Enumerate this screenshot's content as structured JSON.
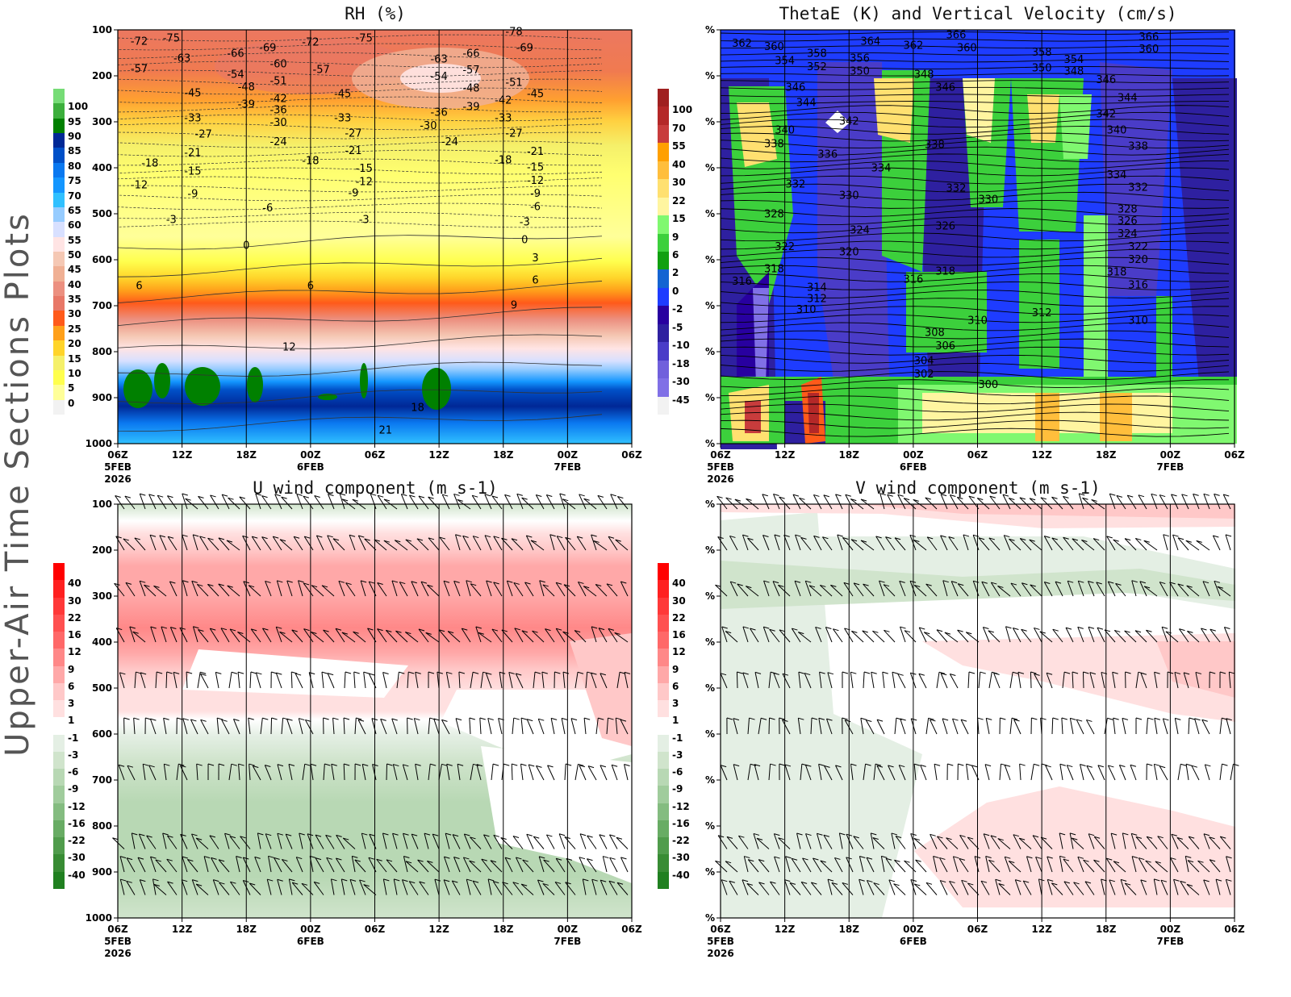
{
  "side_label": "Upper-Air Time Sections Plots",
  "time_axis": {
    "ticks": [
      "06Z",
      "12Z",
      "18Z",
      "00Z",
      "06Z",
      "12Z",
      "18Z",
      "00Z",
      "06Z"
    ],
    "date_labels": [
      {
        "index": 0,
        "lines": [
          "5FEB",
          "2026"
        ]
      },
      {
        "index": 3,
        "lines": [
          "6FEB"
        ]
      },
      {
        "index": 7,
        "lines": [
          "7FEB"
        ]
      }
    ]
  },
  "chart_data": [
    {
      "type": "heatmap",
      "title": "RH (%)",
      "x_range": [
        "5FEB 06Z",
        "7FEB 06Z"
      ],
      "y_ticks": [
        "100",
        "200",
        "300",
        "400",
        "500",
        "600",
        "700",
        "800",
        "900",
        "1000"
      ],
      "y_range": [
        100,
        1000
      ],
      "y_inverted": true,
      "colorbar": {
        "labels": [
          "100",
          "95",
          "90",
          "85",
          "80",
          "75",
          "70",
          "65",
          "60",
          "55",
          "50",
          "45",
          "40",
          "35",
          "30",
          "25",
          "20",
          "15",
          "10",
          "5",
          "0"
        ],
        "colors": [
          "#76dc76",
          "#3caf3c",
          "#008000",
          "#002896",
          "#0050c8",
          "#0a78f0",
          "#1496ff",
          "#30c0ff",
          "#96ccff",
          "#d8e0ff",
          "#ffe4e4",
          "#f5c8b4",
          "#f0b094",
          "#ec9080",
          "#e87868",
          "#ff5a1a",
          "#ffa01a",
          "#ffd42a",
          "#f5f06a",
          "#ffff4d",
          "#ffff99",
          "#f2f2f2"
        ]
      },
      "contour_labels": [
        {
          "v": "-72",
          "t": "5FEB 08Z",
          "p": 126
        },
        {
          "v": "-75",
          "t": "5FEB 11Z",
          "p": 119
        },
        {
          "v": "-63",
          "t": "5FEB 12Z",
          "p": 163
        },
        {
          "v": "-57",
          "t": "5FEB 08Z",
          "p": 186
        },
        {
          "v": "-66",
          "t": "5FEB 17Z",
          "p": 153
        },
        {
          "v": "-69",
          "t": "5FEB 20Z",
          "p": 140
        },
        {
          "v": "-60",
          "t": "5FEB 21Z",
          "p": 175
        },
        {
          "v": "-72",
          "t": "6FEB 00Z",
          "p": 128
        },
        {
          "v": "-75",
          "t": "6FEB 05Z",
          "p": 119
        },
        {
          "v": "-57",
          "t": "6FEB 01Z",
          "p": 188
        },
        {
          "v": "-54",
          "t": "5FEB 17Z",
          "p": 198
        },
        {
          "v": "-51",
          "t": "5FEB 21Z",
          "p": 212
        },
        {
          "v": "-48",
          "t": "5FEB 18Z",
          "p": 225
        },
        {
          "v": "-45",
          "t": "5FEB 13Z",
          "p": 239
        },
        {
          "v": "-45",
          "t": "6FEB 03Z",
          "p": 240
        },
        {
          "v": "-42",
          "t": "5FEB 21Z",
          "p": 251
        },
        {
          "v": "-39",
          "t": "5FEB 18Z",
          "p": 263
        },
        {
          "v": "-36",
          "t": "5FEB 21Z",
          "p": 275
        },
        {
          "v": "-33",
          "t": "5FEB 13Z",
          "p": 293
        },
        {
          "v": "-30",
          "t": "5FEB 21Z",
          "p": 303
        },
        {
          "v": "-33",
          "t": "6FEB 03Z",
          "p": 293
        },
        {
          "v": "-27",
          "t": "5FEB 14Z",
          "p": 328
        },
        {
          "v": "-24",
          "t": "5FEB 21Z",
          "p": 345
        },
        {
          "v": "-27",
          "t": "6FEB 04Z",
          "p": 326
        },
        {
          "v": "-21",
          "t": "5FEB 13Z",
          "p": 368
        },
        {
          "v": "-21",
          "t": "6FEB 04Z",
          "p": 364
        },
        {
          "v": "-18",
          "t": "5FEB 09Z",
          "p": 391
        },
        {
          "v": "-15",
          "t": "5FEB 13Z",
          "p": 409
        },
        {
          "v": "-12",
          "t": "5FEB 08Z",
          "p": 439
        },
        {
          "v": "-9",
          "t": "5FEB 13Z",
          "p": 458
        },
        {
          "v": "-18",
          "t": "6FEB 00Z",
          "p": 386
        },
        {
          "v": "-15",
          "t": "6FEB 05Z",
          "p": 403
        },
        {
          "v": "-12",
          "t": "6FEB 05Z",
          "p": 432
        },
        {
          "v": "-9",
          "t": "6FEB 04Z",
          "p": 456
        },
        {
          "v": "-6",
          "t": "5FEB 20Z",
          "p": 489
        },
        {
          "v": "-3",
          "t": "5FEB 11Z",
          "p": 514
        },
        {
          "v": "-3",
          "t": "6FEB 05Z",
          "p": 514
        },
        {
          "v": "0",
          "t": "5FEB 18Z",
          "p": 570
        },
        {
          "v": "6",
          "t": "5FEB 08Z",
          "p": 658
        },
        {
          "v": "6",
          "t": "6FEB 00Z",
          "p": 658
        },
        {
          "v": "12",
          "t": "5FEB 22Z",
          "p": 791
        },
        {
          "v": "18",
          "t": "6FEB 10Z",
          "p": 923
        },
        {
          "v": "21",
          "t": "6FEB 07Z",
          "p": 972
        },
        {
          "v": "-63",
          "t": "6FEB 12Z",
          "p": 165
        },
        {
          "v": "-66",
          "t": "6FEB 15Z",
          "p": 153
        },
        {
          "v": "-78",
          "t": "6FEB 19Z",
          "p": 105
        },
        {
          "v": "-69",
          "t": "6FEB 20Z",
          "p": 140
        },
        {
          "v": "-54",
          "t": "6FEB 12Z",
          "p": 203
        },
        {
          "v": "-57",
          "t": "6FEB 15Z",
          "p": 189
        },
        {
          "v": "-48",
          "t": "6FEB 15Z",
          "p": 228
        },
        {
          "v": "-51",
          "t": "6FEB 19Z",
          "p": 216
        },
        {
          "v": "-45",
          "t": "6FEB 21Z",
          "p": 240
        },
        {
          "v": "-36",
          "t": "6FEB 12Z",
          "p": 281
        },
        {
          "v": "-39",
          "t": "6FEB 15Z",
          "p": 268
        },
        {
          "v": "-42",
          "t": "6FEB 18Z",
          "p": 254
        },
        {
          "v": "-30",
          "t": "6FEB 11Z",
          "p": 310
        },
        {
          "v": "-33",
          "t": "6FEB 18Z",
          "p": 293
        },
        {
          "v": "-24",
          "t": "6FEB 13Z",
          "p": 345
        },
        {
          "v": "-27",
          "t": "6FEB 19Z",
          "p": 326
        },
        {
          "v": "-21",
          "t": "6FEB 21Z",
          "p": 366
        },
        {
          "v": "-18",
          "t": "6FEB 18Z",
          "p": 384
        },
        {
          "v": "-15",
          "t": "6FEB 21Z",
          "p": 400
        },
        {
          "v": "-12",
          "t": "6FEB 21Z",
          "p": 429
        },
        {
          "v": "-9",
          "t": "6FEB 21Z",
          "p": 457
        },
        {
          "v": "-6",
          "t": "6FEB 21Z",
          "p": 486
        },
        {
          "v": "-3",
          "t": "6FEB 20Z",
          "p": 519
        },
        {
          "v": "0",
          "t": "6FEB 20Z",
          "p": 558
        },
        {
          "v": "3",
          "t": "6FEB 21Z",
          "p": 597
        },
        {
          "v": "6",
          "t": "6FEB 21Z",
          "p": 646
        },
        {
          "v": "9",
          "t": "6FEB 19Z",
          "p": 700
        }
      ]
    },
    {
      "type": "heatmap",
      "title": "ThetaE (K) and Vertical Velocity (cm/s)",
      "x_range": [
        "5FEB 06Z",
        "7FEB 06Z"
      ],
      "y_ticks": [
        "%",
        "%",
        "%",
        "%",
        "%",
        "%",
        "%",
        "%",
        "%",
        "%"
      ],
      "colorbar": {
        "labels": [
          "100",
          "70",
          "55",
          "40",
          "30",
          "22",
          "15",
          "9",
          "6",
          "2",
          "0",
          "-2",
          "-5",
          "-10",
          "-18",
          "-30",
          "-45"
        ],
        "colors": [
          "#a02020",
          "#b42828",
          "#c83c3c",
          "#ffa000",
          "#ffbe3c",
          "#ffe070",
          "#fff5a0",
          "#80f870",
          "#3cd03c",
          "#10a010",
          "#1464d2",
          "#1e3cff",
          "#2800a0",
          "#2e20a0",
          "#4a3cc8",
          "#7060dc",
          "#8070e6",
          "#f2f2f2"
        ]
      },
      "contour_labels": [
        {
          "v": "362",
          "t": "5FEB 08Z",
          "p": 131
        },
        {
          "v": "360",
          "t": "5FEB 11Z",
          "p": 138
        },
        {
          "v": "354",
          "t": "5FEB 12Z",
          "p": 168
        },
        {
          "v": "358",
          "t": "5FEB 15Z",
          "p": 153
        },
        {
          "v": "364",
          "t": "5FEB 20Z",
          "p": 126
        },
        {
          "v": "352",
          "t": "5FEB 15Z",
          "p": 182
        },
        {
          "v": "356",
          "t": "5FEB 19Z",
          "p": 163
        },
        {
          "v": "350",
          "t": "5FEB 19Z",
          "p": 191
        },
        {
          "v": "362",
          "t": "6FEB 00Z",
          "p": 135
        },
        {
          "v": "366",
          "t": "6FEB 04Z",
          "p": 112
        },
        {
          "v": "360",
          "t": "6FEB 05Z",
          "p": 140
        },
        {
          "v": "348",
          "t": "6FEB 01Z",
          "p": 198
        },
        {
          "v": "346",
          "t": "6FEB 03Z",
          "p": 226
        },
        {
          "v": "346",
          "t": "5FEB 13Z",
          "p": 226
        },
        {
          "v": "344",
          "t": "5FEB 14Z",
          "p": 260
        },
        {
          "v": "342",
          "t": "5FEB 18Z",
          "p": 300
        },
        {
          "v": "340",
          "t": "5FEB 12Z",
          "p": 319
        },
        {
          "v": "338",
          "t": "5FEB 11Z",
          "p": 349
        },
        {
          "v": "336",
          "t": "5FEB 16Z",
          "p": 372
        },
        {
          "v": "334",
          "t": "5FEB 21Z",
          "p": 402
        },
        {
          "v": "338",
          "t": "6FEB 02Z",
          "p": 351
        },
        {
          "v": "332",
          "t": "5FEB 13Z",
          "p": 437
        },
        {
          "v": "330",
          "t": "5FEB 18Z",
          "p": 461
        },
        {
          "v": "332",
          "t": "6FEB 04Z",
          "p": 446
        },
        {
          "v": "330",
          "t": "6FEB 07Z",
          "p": 470
        },
        {
          "v": "328",
          "t": "5FEB 11Z",
          "p": 502
        },
        {
          "v": "326",
          "t": "6FEB 03Z",
          "p": 528
        },
        {
          "v": "324",
          "t": "5FEB 19Z",
          "p": 537
        },
        {
          "v": "322",
          "t": "5FEB 12Z",
          "p": 573
        },
        {
          "v": "320",
          "t": "5FEB 18Z",
          "p": 584
        },
        {
          "v": "318",
          "t": "5FEB 11Z",
          "p": 621
        },
        {
          "v": "316",
          "t": "5FEB 08Z",
          "p": 648
        },
        {
          "v": "318",
          "t": "6FEB 03Z",
          "p": 626
        },
        {
          "v": "316",
          "t": "6FEB 00Z",
          "p": 644
        },
        {
          "v": "314",
          "t": "5FEB 15Z",
          "p": 661
        },
        {
          "v": "312",
          "t": "5FEB 15Z",
          "p": 686
        },
        {
          "v": "310",
          "t": "5FEB 14Z",
          "p": 710
        },
        {
          "v": "308",
          "t": "6FEB 02Z",
          "p": 760
        },
        {
          "v": "306",
          "t": "6FEB 03Z",
          "p": 789
        },
        {
          "v": "310",
          "t": "6FEB 06Z",
          "p": 733
        },
        {
          "v": "312",
          "t": "6FEB 12Z",
          "p": 717
        },
        {
          "v": "304",
          "t": "6FEB 01Z",
          "p": 821
        },
        {
          "v": "302",
          "t": "6FEB 01Z",
          "p": 850
        },
        {
          "v": "300",
          "t": "6FEB 07Z",
          "p": 873
        },
        {
          "v": "366",
          "t": "6FEB 22Z",
          "p": 117
        },
        {
          "v": "360",
          "t": "6FEB 22Z",
          "p": 143
        },
        {
          "v": "358",
          "t": "6FEB 12Z",
          "p": 150
        },
        {
          "v": "350",
          "t": "6FEB 12Z",
          "p": 184
        },
        {
          "v": "354",
          "t": "6FEB 15Z",
          "p": 166
        },
        {
          "v": "348",
          "t": "6FEB 15Z",
          "p": 191
        },
        {
          "v": "346",
          "t": "6FEB 18Z",
          "p": 210
        },
        {
          "v": "344",
          "t": "6FEB 20Z",
          "p": 249
        },
        {
          "v": "342",
          "t": "6FEB 18Z",
          "p": 284
        },
        {
          "v": "340",
          "t": "6FEB 19Z",
          "p": 319
        },
        {
          "v": "338",
          "t": "6FEB 21Z",
          "p": 354
        },
        {
          "v": "334",
          "t": "6FEB 19Z",
          "p": 417
        },
        {
          "v": "332",
          "t": "6FEB 21Z",
          "p": 444
        },
        {
          "v": "328",
          "t": "6FEB 20Z",
          "p": 491
        },
        {
          "v": "326",
          "t": "6FEB 20Z",
          "p": 517
        },
        {
          "v": "324",
          "t": "6FEB 20Z",
          "p": 545
        },
        {
          "v": "322",
          "t": "6FEB 21Z",
          "p": 573
        },
        {
          "v": "320",
          "t": "6FEB 21Z",
          "p": 601
        },
        {
          "v": "318",
          "t": "6FEB 19Z",
          "p": 628
        },
        {
          "v": "316",
          "t": "6FEB 21Z",
          "p": 656
        },
        {
          "v": "310",
          "t": "6FEB 21Z",
          "p": 733
        }
      ]
    },
    {
      "type": "heatmap",
      "title": "U wind component (m s-1)",
      "x_range": [
        "5FEB 06Z",
        "7FEB 06Z"
      ],
      "y_ticks": [
        "100",
        "200",
        "300",
        "400",
        "500",
        "600",
        "700",
        "800",
        "900",
        "1000"
      ],
      "y_range": [
        100,
        1000
      ],
      "y_inverted": true,
      "barb_levels": [
        100,
        200,
        300,
        400,
        500,
        600,
        700,
        850,
        900,
        950
      ],
      "colorbar": {
        "labels": [
          "40",
          "30",
          "22",
          "16",
          "12",
          "9",
          "6",
          "3",
          "1",
          "-1",
          "-3",
          "-6",
          "-9",
          "-12",
          "-16",
          "-22",
          "-30",
          "-40"
        ],
        "colors": [
          "#ff0000",
          "#ff2020",
          "#ff3838",
          "#ff5050",
          "#ff6868",
          "#ff8888",
          "#ffa8a8",
          "#ffc8c8",
          "#ffe0e0",
          "#ffffff",
          "#e4efe4",
          "#d0e4cc",
          "#b8d8b4",
          "#a0cc9c",
          "#84bc80",
          "#68ac64",
          "#509c4c",
          "#388c34",
          "#208020"
        ]
      }
    },
    {
      "type": "heatmap",
      "title": "V wind component (m s-1)",
      "x_range": [
        "5FEB 06Z",
        "7FEB 06Z"
      ],
      "y_ticks": [
        "%",
        "%",
        "%",
        "%",
        "%",
        "%",
        "%",
        "%",
        "%",
        "%"
      ],
      "barb_levels": [
        100,
        200,
        300,
        400,
        500,
        600,
        700,
        850,
        900,
        950
      ],
      "colorbar": {
        "labels": [
          "40",
          "30",
          "22",
          "16",
          "12",
          "9",
          "6",
          "3",
          "1",
          "-1",
          "-3",
          "-6",
          "-9",
          "-12",
          "-16",
          "-22",
          "-30",
          "-40"
        ],
        "colors": [
          "#ff0000",
          "#ff2020",
          "#ff3838",
          "#ff5050",
          "#ff6868",
          "#ff8888",
          "#ffa8a8",
          "#ffc8c8",
          "#ffe0e0",
          "#ffffff",
          "#e4efe4",
          "#d0e4cc",
          "#b8d8b4",
          "#a0cc9c",
          "#84bc80",
          "#68ac64",
          "#509c4c",
          "#388c34",
          "#208020"
        ]
      }
    }
  ]
}
